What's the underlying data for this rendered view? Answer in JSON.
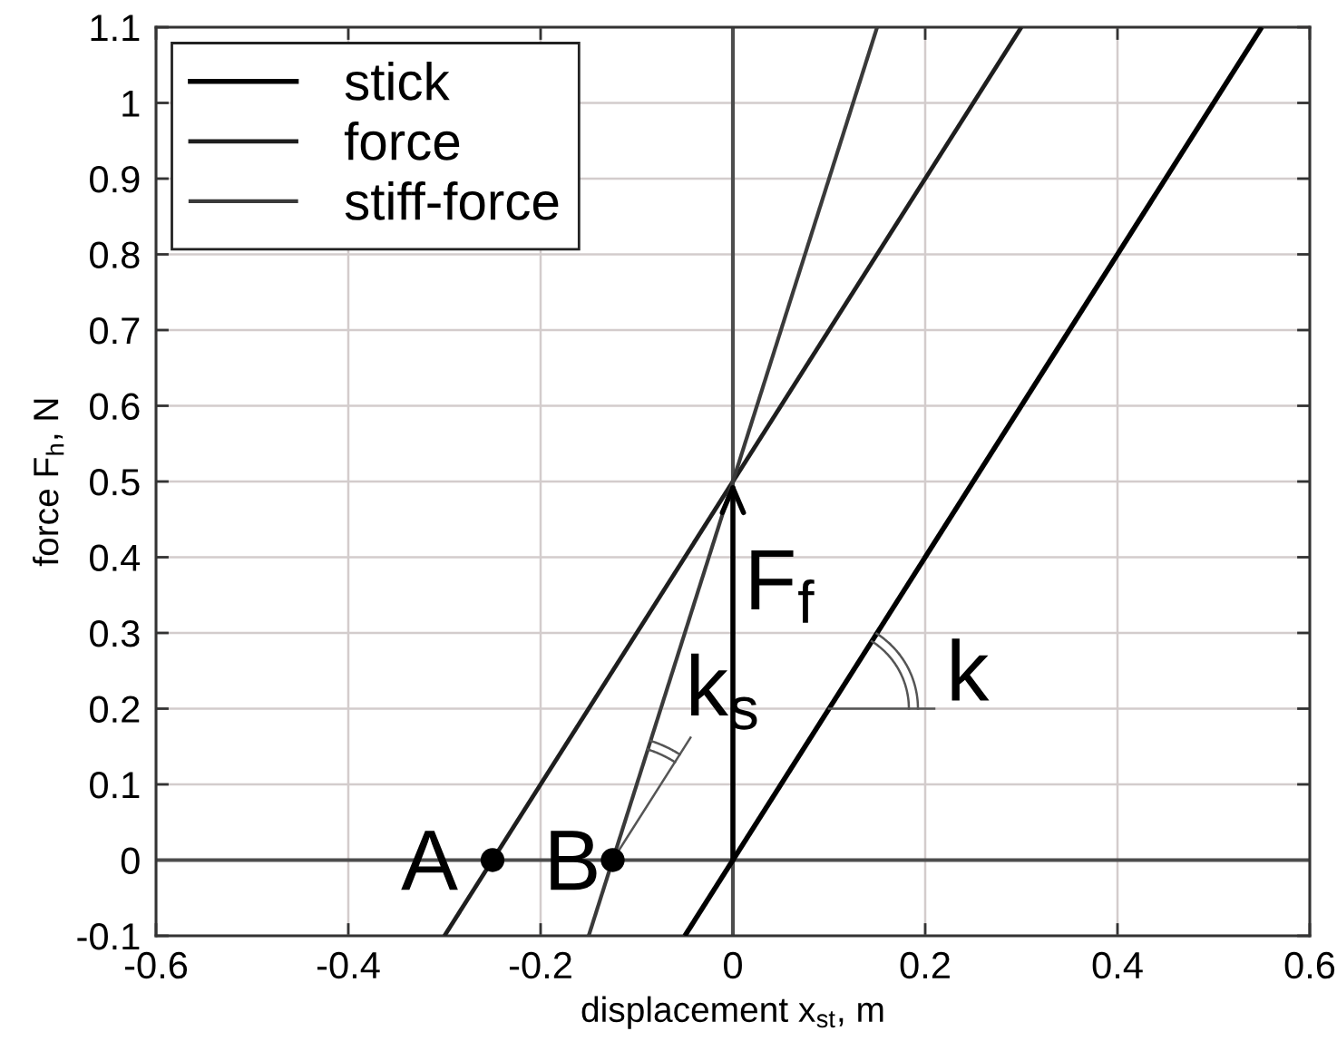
{
  "chart_data": {
    "type": "line",
    "xlabel": "displacement x$_{st}$, m",
    "ylabel": "force F$_{h}$, N",
    "series": [
      {
        "name": "stick",
        "color": "#000000",
        "x": [
          -0.05,
          0.55
        ],
        "values": [
          -0.1,
          1.1
        ]
      },
      {
        "name": "force",
        "color": "#1e1e1e",
        "x": [
          -0.3,
          0.3
        ],
        "values": [
          -0.1,
          1.1
        ]
      },
      {
        "name": "stiff-force",
        "color": "#3a3a3a",
        "x": [
          -0.15,
          0.15
        ],
        "values": [
          -0.1,
          1.1
        ]
      },
      {
        "type": "scatter",
        "color": "#000000",
        "x": [
          -0.25,
          -0.125
        ],
        "values": [
          0,
          0
        ],
        "marker": "circle"
      },
      {
        "color": "#4d4d4d",
        "x": [
          0,
          0
        ],
        "values": [
          -0.1,
          1.1
        ]
      },
      {
        "color": "#4d4d4d",
        "x": [
          -0.6,
          0.6
        ],
        "values": [
          0,
          0
        ]
      }
    ],
    "xlim": [
      -0.6,
      0.6
    ],
    "ylim": [
      -0.1,
      1.1
    ],
    "xticks": [
      -0.6,
      -0.4,
      -0.2,
      0,
      0.2,
      0.4,
      0.6
    ],
    "yticks": [
      -0.1,
      0,
      0.1,
      0.2,
      0.3,
      0.4,
      0.5,
      0.6,
      0.7,
      0.8,
      0.9,
      1,
      1.1
    ],
    "annotations": [
      {
        "text": "A",
        "x": -0.25,
        "y": 0
      },
      {
        "text": "B",
        "x": -0.125,
        "y": 0
      },
      {
        "text": "F$_{f}$",
        "x": 0,
        "y": 0.5
      },
      {
        "text": "k$_{s}$",
        "x": -0.125,
        "y": 0
      },
      {
        "text": "k",
        "x": 0.1,
        "y": 0.2
      }
    ],
    "grid": true,
    "legend": "top left",
    "line_style": "solid"
  }
}
